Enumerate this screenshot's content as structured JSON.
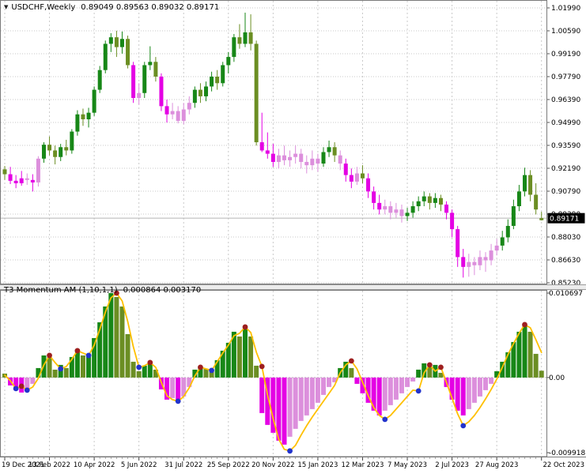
{
  "window": {
    "dropdown_icon": "▼",
    "symbol": "USDCHF,Weekly",
    "ohlc": "0.89049 0.89563 0.89032 0.89171"
  },
  "indicator": {
    "label": "T3 Momentum AM (1,10,1,1)",
    "values": "0.000864 0.003170"
  },
  "price_tag": "0.89171",
  "colors": {
    "background": "#ffffff",
    "frame": "#7a7a7a",
    "grid": "#c9c9c9",
    "title_text": "#a93b26",
    "up_strong": "#178717",
    "up_weak": "#6B8E23",
    "down_strong": "#E400E4",
    "down_weak": "#DC8FDC",
    "signal_line": "#FFC000",
    "peak_dot": "#9E1F1F",
    "trough_dot": "#2233CC",
    "tag_bg": "#000000",
    "tag_fg": "#ffffff",
    "current_price_line": "#b5b5b5"
  },
  "chart_data": [
    {
      "type": "candlestick",
      "title": "USDCHF Weekly",
      "ylim": [
        0.8523,
        1.0199
      ],
      "last_price": 0.89171,
      "y_labels": [
        "1.01990",
        "1.00590",
        "0.99190",
        "0.97790",
        "0.96390",
        "0.94990",
        "0.93590",
        "0.92190",
        "0.90790",
        "0.89390",
        "0.88030",
        "0.86630",
        "0.85230"
      ],
      "x_labels": [
        "19 Dec 2021",
        "13 Feb 2022",
        "10 Apr 2022",
        "5 Jun 2022",
        "31 Jul 2022",
        "25 Sep 2022",
        "20 Nov 2022",
        "15 Jan 2023",
        "12 Mar 2023",
        "7 May 2023",
        "2 Jul 2023",
        "27 Aug 2023",
        "22 Oct 2023"
      ],
      "x_tick_every": 8,
      "color_key": {
        "g": "up_strong",
        "o": "up_weak",
        "m": "down_strong",
        "p": "down_weak"
      },
      "candles": [
        [
          0.9215,
          0.9235,
          0.915,
          0.9185,
          "o"
        ],
        [
          0.9185,
          0.923,
          0.9125,
          0.9145,
          "m"
        ],
        [
          0.9145,
          0.918,
          0.91,
          0.913,
          "m"
        ],
        [
          0.913,
          0.9205,
          0.9115,
          0.916,
          "m"
        ],
        [
          0.916,
          0.919,
          0.912,
          0.915,
          "p"
        ],
        [
          0.915,
          0.9185,
          0.908,
          0.9135,
          "m"
        ],
        [
          0.9135,
          0.9295,
          0.911,
          0.928,
          "p"
        ],
        [
          0.928,
          0.938,
          0.9255,
          0.9365,
          "g"
        ],
        [
          0.9365,
          0.9415,
          0.93,
          0.933,
          "o"
        ],
        [
          0.933,
          0.936,
          0.9245,
          0.929,
          "o"
        ],
        [
          0.929,
          0.937,
          0.9265,
          0.935,
          "g"
        ],
        [
          0.935,
          0.9395,
          0.93,
          0.933,
          "o"
        ],
        [
          0.933,
          0.946,
          0.931,
          0.9445,
          "g"
        ],
        [
          0.9445,
          0.9575,
          0.942,
          0.955,
          "g"
        ],
        [
          0.955,
          0.9585,
          0.948,
          0.952,
          "o"
        ],
        [
          0.952,
          0.959,
          0.947,
          0.956,
          "g"
        ],
        [
          0.956,
          0.972,
          0.954,
          0.97,
          "g"
        ],
        [
          0.97,
          0.9845,
          0.968,
          0.982,
          "g"
        ],
        [
          0.982,
          1.0,
          0.98,
          0.998,
          "g"
        ],
        [
          0.998,
          1.0045,
          0.993,
          1.002,
          "g"
        ],
        [
          1.002,
          1.006,
          0.99,
          0.996,
          "o"
        ],
        [
          0.996,
          1.0055,
          0.992,
          1.001,
          "g"
        ],
        [
          1.001,
          1.003,
          0.983,
          0.985,
          "o"
        ],
        [
          0.985,
          0.987,
          0.962,
          0.965,
          "m"
        ],
        [
          0.965,
          0.974,
          0.961,
          0.968,
          "p"
        ],
        [
          0.968,
          0.987,
          0.965,
          0.985,
          "g"
        ],
        [
          0.985,
          0.9965,
          0.982,
          0.987,
          "g"
        ],
        [
          0.987,
          0.99,
          0.975,
          0.978,
          "o"
        ],
        [
          0.978,
          0.98,
          0.957,
          0.96,
          "m"
        ],
        [
          0.96,
          0.964,
          0.95,
          0.955,
          "m"
        ],
        [
          0.955,
          0.962,
          0.952,
          0.957,
          "p"
        ],
        [
          0.957,
          0.96,
          0.9495,
          0.951,
          "p"
        ],
        [
          0.951,
          0.962,
          0.949,
          0.958,
          "p"
        ],
        [
          0.958,
          0.966,
          0.955,
          0.962,
          "p"
        ],
        [
          0.962,
          0.972,
          0.959,
          0.97,
          "g"
        ],
        [
          0.97,
          0.974,
          0.962,
          0.966,
          "o"
        ],
        [
          0.966,
          0.975,
          0.963,
          0.972,
          "g"
        ],
        [
          0.972,
          0.981,
          0.969,
          0.978,
          "g"
        ],
        [
          0.978,
          0.982,
          0.97,
          0.974,
          "o"
        ],
        [
          0.974,
          0.987,
          0.972,
          0.985,
          "g"
        ],
        [
          0.985,
          0.993,
          0.98,
          0.99,
          "g"
        ],
        [
          0.99,
          1.004,
          0.987,
          1.002,
          "g"
        ],
        [
          1.002,
          1.01,
          0.995,
          0.998,
          "o"
        ],
        [
          0.998,
          1.017,
          0.996,
          1.005,
          "g"
        ],
        [
          1.005,
          1.016,
          0.994,
          0.998,
          "o"
        ],
        [
          0.998,
          1.0,
          0.936,
          0.938,
          "o"
        ],
        [
          0.938,
          0.956,
          0.932,
          0.933,
          "m"
        ],
        [
          0.933,
          0.944,
          0.928,
          0.931,
          "m"
        ],
        [
          0.931,
          0.937,
          0.923,
          0.926,
          "m"
        ],
        [
          0.926,
          0.934,
          0.922,
          0.93,
          "p"
        ],
        [
          0.93,
          0.936,
          0.924,
          0.927,
          "p"
        ],
        [
          0.927,
          0.933,
          0.923,
          0.929,
          "p"
        ],
        [
          0.929,
          0.936,
          0.925,
          0.931,
          "p"
        ],
        [
          0.931,
          0.934,
          0.922,
          0.926,
          "p"
        ],
        [
          0.926,
          0.93,
          0.919,
          0.924,
          "p"
        ],
        [
          0.924,
          0.933,
          0.921,
          0.928,
          "p"
        ],
        [
          0.928,
          0.931,
          0.92,
          0.925,
          "p"
        ],
        [
          0.925,
          0.935,
          0.923,
          0.932,
          "g"
        ],
        [
          0.932,
          0.939,
          0.929,
          0.935,
          "g"
        ],
        [
          0.935,
          0.938,
          0.926,
          0.93,
          "o"
        ],
        [
          0.93,
          0.933,
          0.921,
          0.925,
          "p"
        ],
        [
          0.925,
          0.928,
          0.914,
          0.918,
          "m"
        ],
        [
          0.918,
          0.922,
          0.91,
          0.914,
          "m"
        ],
        [
          0.914,
          0.923,
          0.912,
          0.919,
          "p"
        ],
        [
          0.919,
          0.924,
          0.913,
          0.916,
          "o"
        ],
        [
          0.916,
          0.919,
          0.904,
          0.908,
          "m"
        ],
        [
          0.908,
          0.911,
          0.897,
          0.901,
          "m"
        ],
        [
          0.901,
          0.906,
          0.894,
          0.897,
          "m"
        ],
        [
          0.897,
          0.903,
          0.894,
          0.899,
          "p"
        ],
        [
          0.899,
          0.902,
          0.891,
          0.895,
          "p"
        ],
        [
          0.895,
          0.901,
          0.892,
          0.897,
          "p"
        ],
        [
          0.897,
          0.9,
          0.889,
          0.893,
          "p"
        ],
        [
          0.893,
          0.898,
          0.89,
          0.895,
          "g"
        ],
        [
          0.895,
          0.902,
          0.892,
          0.899,
          "g"
        ],
        [
          0.899,
          0.905,
          0.896,
          0.902,
          "g"
        ],
        [
          0.902,
          0.908,
          0.899,
          0.905,
          "g"
        ],
        [
          0.905,
          0.907,
          0.897,
          0.901,
          "o"
        ],
        [
          0.901,
          0.907,
          0.898,
          0.904,
          "g"
        ],
        [
          0.904,
          0.906,
          0.896,
          0.9,
          "o"
        ],
        [
          0.9,
          0.902,
          0.891,
          0.895,
          "m"
        ],
        [
          0.895,
          0.897,
          0.88,
          0.885,
          "m"
        ],
        [
          0.885,
          0.887,
          0.862,
          0.868,
          "m"
        ],
        [
          0.868,
          0.873,
          0.8555,
          0.862,
          "m"
        ],
        [
          0.862,
          0.87,
          0.856,
          0.865,
          "p"
        ],
        [
          0.865,
          0.868,
          0.857,
          0.863,
          "p"
        ],
        [
          0.863,
          0.872,
          0.86,
          0.868,
          "p"
        ],
        [
          0.868,
          0.871,
          0.859,
          0.866,
          "p"
        ],
        [
          0.866,
          0.876,
          0.863,
          0.872,
          "p"
        ],
        [
          0.872,
          0.879,
          0.869,
          0.875,
          "p"
        ],
        [
          0.875,
          0.884,
          0.872,
          0.88,
          "g"
        ],
        [
          0.88,
          0.891,
          0.877,
          0.887,
          "g"
        ],
        [
          0.887,
          0.903,
          0.885,
          0.899,
          "g"
        ],
        [
          0.899,
          0.912,
          0.896,
          0.908,
          "g"
        ],
        [
          0.908,
          0.9225,
          0.905,
          0.918,
          "g"
        ],
        [
          0.918,
          0.921,
          0.902,
          0.906,
          "o"
        ],
        [
          0.906,
          0.913,
          0.894,
          0.897,
          "o"
        ],
        [
          0.89049,
          0.89563,
          0.89032,
          0.89171,
          "o"
        ]
      ]
    },
    {
      "type": "bar",
      "title": "T3 Momentum AM (1,10,1,1)",
      "ylim": [
        -0.009918,
        0.010697
      ],
      "y_labels": [
        "0.010697",
        "0.00",
        "-0.009918"
      ],
      "color_key": {
        "g": "up_strong",
        "o": "up_weak",
        "m": "down_strong",
        "p": "down_weak"
      },
      "bars": [
        [
          0.0005,
          "o"
        ],
        [
          -0.001,
          "m"
        ],
        [
          -0.0016,
          "m"
        ],
        [
          -0.0019,
          "m"
        ],
        [
          -0.0014,
          "p"
        ],
        [
          -0.0008,
          "p"
        ],
        [
          0.0012,
          "g"
        ],
        [
          0.0028,
          "g"
        ],
        [
          0.0026,
          "o"
        ],
        [
          0.001,
          "o"
        ],
        [
          0.0016,
          "g"
        ],
        [
          0.0012,
          "o"
        ],
        [
          0.0026,
          "g"
        ],
        [
          0.0036,
          "g"
        ],
        [
          0.0028,
          "o"
        ],
        [
          0.003,
          "g"
        ],
        [
          0.005,
          "g"
        ],
        [
          0.007,
          "g"
        ],
        [
          0.009,
          "g"
        ],
        [
          0.0107,
          "g"
        ],
        [
          0.0102,
          "o"
        ],
        [
          0.009,
          "o"
        ],
        [
          0.0055,
          "o"
        ],
        [
          0.002,
          "o"
        ],
        [
          0.0008,
          "o"
        ],
        [
          0.0015,
          "g"
        ],
        [
          0.0018,
          "g"
        ],
        [
          0.001,
          "o"
        ],
        [
          -0.0015,
          "m"
        ],
        [
          -0.0028,
          "m"
        ],
        [
          -0.0026,
          "p"
        ],
        [
          -0.003,
          "m"
        ],
        [
          -0.0024,
          "p"
        ],
        [
          -0.0012,
          "p"
        ],
        [
          0.001,
          "g"
        ],
        [
          0.0014,
          "g"
        ],
        [
          0.0011,
          "o"
        ],
        [
          0.0008,
          "o"
        ],
        [
          0.0022,
          "g"
        ],
        [
          0.0034,
          "g"
        ],
        [
          0.0044,
          "g"
        ],
        [
          0.0058,
          "g"
        ],
        [
          0.0052,
          "o"
        ],
        [
          0.0065,
          "g"
        ],
        [
          0.0052,
          "o"
        ],
        [
          0.0015,
          "o"
        ],
        [
          -0.0045,
          "m"
        ],
        [
          -0.006,
          "m"
        ],
        [
          -0.007,
          "m"
        ],
        [
          -0.008,
          "m"
        ],
        [
          -0.0085,
          "m"
        ],
        [
          -0.0075,
          "p"
        ],
        [
          -0.0065,
          "p"
        ],
        [
          -0.0055,
          "p"
        ],
        [
          -0.0048,
          "p"
        ],
        [
          -0.004,
          "p"
        ],
        [
          -0.0032,
          "p"
        ],
        [
          -0.0022,
          "p"
        ],
        [
          -0.0012,
          "p"
        ],
        [
          -0.0006,
          "p"
        ],
        [
          0.0012,
          "g"
        ],
        [
          0.002,
          "g"
        ],
        [
          0.0012,
          "o"
        ],
        [
          -0.0008,
          "m"
        ],
        [
          -0.002,
          "m"
        ],
        [
          -0.0032,
          "m"
        ],
        [
          -0.0042,
          "m"
        ],
        [
          -0.0048,
          "m"
        ],
        [
          -0.0042,
          "p"
        ],
        [
          -0.0035,
          "p"
        ],
        [
          -0.0028,
          "p"
        ],
        [
          -0.002,
          "p"
        ],
        [
          -0.0012,
          "p"
        ],
        [
          -0.0005,
          "p"
        ],
        [
          0.001,
          "g"
        ],
        [
          0.0018,
          "g"
        ],
        [
          0.0014,
          "o"
        ],
        [
          0.0016,
          "g"
        ],
        [
          0.0006,
          "o"
        ],
        [
          -0.0012,
          "m"
        ],
        [
          -0.0028,
          "m"
        ],
        [
          -0.0042,
          "m"
        ],
        [
          -0.0048,
          "m"
        ],
        [
          -0.004,
          "p"
        ],
        [
          -0.0032,
          "p"
        ],
        [
          -0.0024,
          "p"
        ],
        [
          -0.0016,
          "p"
        ],
        [
          -0.0008,
          "p"
        ],
        [
          0.0008,
          "g"
        ],
        [
          0.002,
          "g"
        ],
        [
          0.0032,
          "g"
        ],
        [
          0.0045,
          "g"
        ],
        [
          0.0058,
          "g"
        ],
        [
          0.0065,
          "g"
        ],
        [
          0.0058,
          "o"
        ],
        [
          0.003,
          "o"
        ],
        [
          0.000864,
          "o"
        ]
      ],
      "line": [
        0.0003,
        -0.0004,
        -0.0014,
        -0.0011,
        -0.0016,
        -0.0012,
        -0.0001,
        0.0016,
        0.0028,
        0.0019,
        0.0011,
        0.0014,
        0.0023,
        0.0034,
        0.0031,
        0.0028,
        0.0041,
        0.0061,
        0.0083,
        0.0101,
        0.0107,
        0.0097,
        0.0071,
        0.0039,
        0.0013,
        0.0015,
        0.0019,
        0.0013,
        -0.0006,
        -0.0023,
        -0.0028,
        -0.003,
        -0.0024,
        -0.0013,
        0.0002,
        0.0013,
        0.0011,
        0.0009,
        0.002,
        0.0031,
        0.0041,
        0.0053,
        0.0056,
        0.0064,
        0.0057,
        0.0032,
        0.0014,
        -0.0022,
        -0.0052,
        -0.0078,
        -0.0091,
        -0.0093,
        -0.0086,
        -0.0073,
        -0.0061,
        -0.005,
        -0.004,
        -0.003,
        -0.002,
        -0.001,
        0.0006,
        0.0016,
        0.0021,
        0.0011,
        -0.0006,
        -0.0023,
        -0.0038,
        -0.0048,
        -0.0053,
        -0.0048,
        -0.004,
        -0.0032,
        -0.0024,
        -0.0016,
        -0.0017,
        0.0006,
        0.0016,
        0.0008,
        0.0013,
        -0.0006,
        -0.0026,
        -0.0046,
        -0.0061,
        -0.0056,
        -0.0048,
        -0.0038,
        -0.0027,
        -0.0015,
        -0.0002,
        0.0013,
        0.0029,
        0.0043,
        0.0056,
        0.0067,
        0.0063,
        0.0048,
        0.00317
      ],
      "peak_dots": [
        3,
        8,
        13,
        20,
        26,
        35,
        43,
        46,
        62,
        76,
        78,
        93
      ],
      "trough_dots": [
        2,
        4,
        10,
        15,
        24,
        31,
        37,
        51,
        68,
        74,
        82
      ]
    }
  ]
}
